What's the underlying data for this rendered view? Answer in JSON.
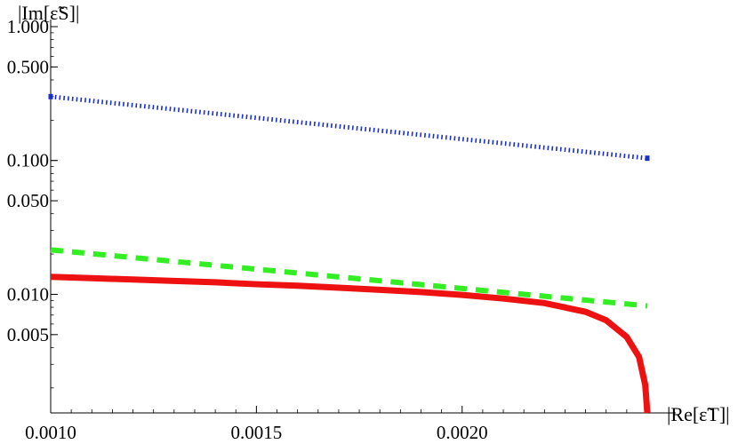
{
  "chart_data": {
    "type": "line",
    "xscale": "linear",
    "yscale": "log",
    "xlim": [
      0.001,
      0.00245
    ],
    "ylim": [
      0.0013,
      1.0
    ],
    "xlabel": "|Re[ε̃T]|",
    "ylabel": "|Im[ε̃S]|",
    "xticks": [
      0.001,
      0.0015,
      0.002
    ],
    "xtick_labels": [
      "0.0010",
      "0.0015",
      "0.0020"
    ],
    "yticks": [
      1.0,
      0.5,
      0.1,
      0.05,
      0.01,
      0.005
    ],
    "ytick_labels": [
      "1.000",
      "0.500",
      "0.100",
      "0.050",
      "0.010",
      "0.005"
    ],
    "grid": false,
    "series": [
      {
        "style": "dotted",
        "color": "#1a2fcc",
        "x": [
          0.001,
          0.00245
        ],
        "y": [
          0.3,
          0.104
        ]
      },
      {
        "style": "dashed",
        "color": "#33ee22",
        "x": [
          0.001,
          0.00245
        ],
        "y": [
          0.0215,
          0.0082
        ]
      },
      {
        "style": "solid",
        "color": "#ee1111",
        "x": [
          0.001,
          0.0011,
          0.0012,
          0.0013,
          0.0014,
          0.0015,
          0.0016,
          0.0017,
          0.0018,
          0.0019,
          0.002,
          0.0021,
          0.0022,
          0.0023,
          0.00235,
          0.0024,
          0.00243,
          0.002445,
          0.00245
        ],
        "y": [
          0.0135,
          0.0132,
          0.0129,
          0.0126,
          0.0123,
          0.0119,
          0.0116,
          0.0112,
          0.0108,
          0.0104,
          0.0099,
          0.0093,
          0.0086,
          0.0074,
          0.0064,
          0.0048,
          0.0034,
          0.0021,
          0.0013
        ]
      }
    ]
  }
}
